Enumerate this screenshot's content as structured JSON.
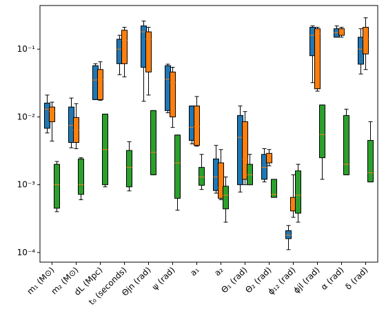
{
  "chart_data": {
    "type": "box",
    "y_scale": "log",
    "ylim": [
      7.2e-05,
      0.44
    ],
    "yticks": [
      {
        "value": 0.0001,
        "label": "10⁻⁴"
      },
      {
        "value": 0.001,
        "label": "10⁻³"
      },
      {
        "value": 0.01,
        "label": "10⁻²"
      },
      {
        "value": 0.1,
        "label": "10⁻¹"
      }
    ],
    "median_color": "#ff7f0e",
    "categories": [
      "m₁ (M⊙)",
      "m₂ (M⊙)",
      "dL (Mpc)",
      "t₀ (seconds)",
      "Θjn (rad)",
      "ψ (rad)",
      "a₁",
      "a₂",
      "Θ₁ (rad)",
      "Θ₂ (rad)",
      "ϕ₁₂ (rad)",
      "ϕjl (rad)",
      "α (rad)",
      "δ (rad)"
    ],
    "series": [
      {
        "color": "#1f77b4",
        "boxes": [
          [
            0.0058,
            0.0068,
            0.013,
            0.016,
            0.021
          ],
          [
            0.0035,
            0.0042,
            0.0075,
            0.014,
            0.019
          ],
          [
            0.018,
            0.018,
            0.035,
            0.057,
            0.061
          ],
          [
            0.042,
            0.061,
            0.1,
            0.14,
            0.16
          ],
          [
            0.017,
            0.054,
            0.18,
            0.22,
            0.26
          ],
          [
            0.0115,
            0.0124,
            0.036,
            0.057,
            0.06
          ],
          [
            0.004,
            0.0045,
            0.007,
            0.0145,
            0.0145
          ],
          [
            0.00075,
            0.00082,
            0.0013,
            0.0024,
            0.0038
          ],
          [
            0.00078,
            0.001,
            0.005,
            0.0105,
            0.0145
          ],
          [
            0.0011,
            0.0012,
            0.0018,
            0.0028,
            0.0034
          ],
          [
            0.00011,
            0.00016,
            0.00018,
            0.00021,
            0.00025
          ],
          [
            0.032,
            0.08,
            0.16,
            0.21,
            0.22
          ],
          [
            0.15,
            0.15,
            0.175,
            0.2,
            0.22
          ],
          [
            0.043,
            0.06,
            0.1,
            0.15,
            0.2
          ]
        ]
      },
      {
        "color": "#ff7f0e",
        "boxes": [
          [
            0.0044,
            0.0085,
            0.012,
            0.014,
            0.0165
          ],
          [
            0.0034,
            0.0042,
            0.0064,
            0.0098,
            0.0157
          ],
          [
            0.0176,
            0.018,
            0.036,
            0.05,
            0.065
          ],
          [
            0.039,
            0.061,
            0.135,
            0.19,
            0.21
          ],
          [
            0.021,
            0.046,
            0.14,
            0.18,
            0.21
          ],
          [
            0.007,
            0.01,
            0.032,
            0.046,
            0.054
          ],
          [
            0.0037,
            0.0038,
            0.0072,
            0.0145,
            0.02
          ],
          [
            0.0006,
            0.00063,
            0.0009,
            0.0021,
            0.0033
          ],
          [
            0.001,
            0.0012,
            0.0024,
            0.0085,
            0.012
          ],
          [
            0.0019,
            0.0021,
            0.0028,
            0.0029,
            0.0033
          ],
          [
            0.00033,
            0.00041,
            0.0005,
            0.00065,
            0.0014
          ],
          [
            0.024,
            0.026,
            0.17,
            0.2,
            0.21
          ],
          [
            0.15,
            0.16,
            0.185,
            0.2,
            0.21
          ],
          [
            0.05,
            0.085,
            0.14,
            0.21,
            0.29
          ]
        ]
      },
      {
        "color": "#2ca02c",
        "boxes": [
          [
            0.0004,
            0.00045,
            0.001,
            0.002,
            0.0022
          ],
          [
            0.0006,
            0.00072,
            0.001,
            0.0024,
            0.0025
          ],
          [
            0.00093,
            0.001,
            0.0033,
            0.011,
            0.011
          ],
          [
            0.00081,
            0.00093,
            0.0018,
            0.0032,
            0.0043
          ],
          [
            0.0014,
            0.0014,
            0.003,
            0.0124,
            0.0124
          ],
          [
            0.00042,
            0.00063,
            0.0021,
            0.0054,
            0.0054
          ],
          [
            0.00085,
            0.00098,
            0.0013,
            0.0018,
            0.0028
          ],
          [
            0.00028,
            0.00044,
            0.0007,
            0.00095,
            0.0013
          ],
          [
            0.001,
            0.001,
            0.0014,
            0.002,
            0.0028
          ],
          [
            0.00065,
            0.00065,
            0.00072,
            0.0012,
            0.0012
          ],
          [
            0.00028,
            0.00038,
            0.0007,
            0.0016,
            0.002
          ],
          [
            0.0012,
            0.0025,
            0.0055,
            0.015,
            0.015
          ],
          [
            0.0014,
            0.0014,
            0.002,
            0.0105,
            0.013
          ],
          [
            0.0011,
            0.0011,
            0.0015,
            0.0045,
            0.0085
          ]
        ]
      }
    ]
  }
}
